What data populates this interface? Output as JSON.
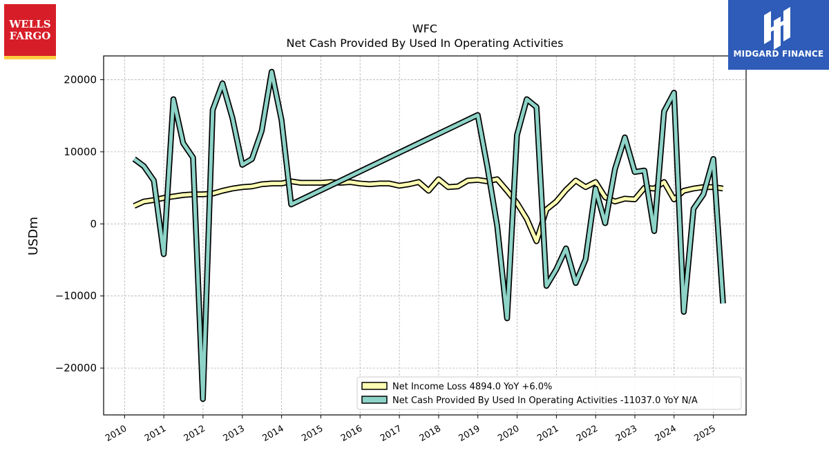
{
  "logos": {
    "left_brand": "WELLS FARGO",
    "left_line1": "WELLS",
    "left_line2": "FARGO",
    "right_brand": "MIDGARD FINANCE"
  },
  "colors": {
    "net_income": "#ffffb3",
    "net_cash": "#8dd3c7",
    "outline": "#000000",
    "wf_red": "#d71e28",
    "wf_gold": "#ffcd41",
    "midgard_blue": "#2e5cb8"
  },
  "chart_data": {
    "type": "line",
    "title": "WFC",
    "subtitle": "Net Cash Provided By Used In Operating Activities",
    "xlabel": "",
    "ylabel": "USDm",
    "xlim": [
      "2009-06-20",
      "2025-11-01"
    ],
    "ylim": [
      -26500,
      23300
    ],
    "x_ticks": [
      "2010",
      "2011",
      "2012",
      "2013",
      "2014",
      "2015",
      "2016",
      "2017",
      "2018",
      "2019",
      "2020",
      "2021",
      "2022",
      "2023",
      "2024",
      "2025"
    ],
    "y_ticks": [
      -20000,
      -10000,
      0,
      10000,
      20000
    ],
    "y_tick_labels": [
      "−20000",
      "−10000",
      "0",
      "10000",
      "20000"
    ],
    "grid": true,
    "legend_position": "lower-right",
    "series": [
      {
        "name": "Net Income Loss",
        "legend_label": "Net Income Loss  4894.0 YoY +6.0%",
        "color": "#ffffb3",
        "points": [
          [
            "2010-03-31",
            2500
          ],
          [
            "2010-06-30",
            3100
          ],
          [
            "2010-09-30",
            3300
          ],
          [
            "2010-12-31",
            3600
          ],
          [
            "2011-03-31",
            3800
          ],
          [
            "2011-06-30",
            4000
          ],
          [
            "2011-09-30",
            4100
          ],
          [
            "2011-12-31",
            4100
          ],
          [
            "2012-03-31",
            4200
          ],
          [
            "2012-06-30",
            4600
          ],
          [
            "2012-09-30",
            4900
          ],
          [
            "2012-12-31",
            5100
          ],
          [
            "2013-03-31",
            5200
          ],
          [
            "2013-06-30",
            5500
          ],
          [
            "2013-09-30",
            5600
          ],
          [
            "2013-12-31",
            5600
          ],
          [
            "2014-03-31",
            5900
          ],
          [
            "2014-06-30",
            5700
          ],
          [
            "2014-09-30",
            5700
          ],
          [
            "2014-12-31",
            5700
          ],
          [
            "2015-03-31",
            5800
          ],
          [
            "2015-06-30",
            5700
          ],
          [
            "2015-09-30",
            5800
          ],
          [
            "2015-12-31",
            5600
          ],
          [
            "2016-03-31",
            5500
          ],
          [
            "2016-06-30",
            5600
          ],
          [
            "2016-09-30",
            5600
          ],
          [
            "2016-12-31",
            5300
          ],
          [
            "2017-03-31",
            5500
          ],
          [
            "2017-06-30",
            5800
          ],
          [
            "2017-09-30",
            4600
          ],
          [
            "2017-12-31",
            6200
          ],
          [
            "2018-03-31",
            5100
          ],
          [
            "2018-06-30",
            5200
          ],
          [
            "2018-09-30",
            6000
          ],
          [
            "2018-12-31",
            6100
          ],
          [
            "2019-03-31",
            5900
          ],
          [
            "2019-06-30",
            6200
          ],
          [
            "2019-09-30",
            4600
          ],
          [
            "2019-12-31",
            2900
          ],
          [
            "2020-03-31",
            700
          ],
          [
            "2020-06-30",
            -2400
          ],
          [
            "2020-09-30",
            2000
          ],
          [
            "2020-12-31",
            3100
          ],
          [
            "2021-03-31",
            4700
          ],
          [
            "2021-06-30",
            6000
          ],
          [
            "2021-09-30",
            5100
          ],
          [
            "2021-12-31",
            5800
          ],
          [
            "2022-03-31",
            3700
          ],
          [
            "2022-06-30",
            3100
          ],
          [
            "2022-09-30",
            3500
          ],
          [
            "2022-12-31",
            3400
          ],
          [
            "2023-03-31",
            5000
          ],
          [
            "2023-06-30",
            4900
          ],
          [
            "2023-09-30",
            5800
          ],
          [
            "2023-12-31",
            3400
          ],
          [
            "2024-03-31",
            4600
          ],
          [
            "2024-06-30",
            4900
          ],
          [
            "2024-09-30",
            5100
          ],
          [
            "2024-12-31",
            5100
          ],
          [
            "2025-03-31",
            4900
          ]
        ]
      },
      {
        "name": "Net Cash Provided By Used In Operating Activities",
        "legend_label": "Net Cash Provided By Used In Operating Activities  -11037.0 YoY N/A",
        "color": "#8dd3c7",
        "points": [
          [
            "2010-03-31",
            9000
          ],
          [
            "2010-06-30",
            8000
          ],
          [
            "2010-09-30",
            6000
          ],
          [
            "2010-12-31",
            -4200
          ],
          [
            "2011-03-31",
            17300
          ],
          [
            "2011-06-30",
            11200
          ],
          [
            "2011-09-30",
            9200
          ],
          [
            "2011-12-31",
            -24300
          ],
          [
            "2012-03-31",
            15800
          ],
          [
            "2012-06-30",
            19500
          ],
          [
            "2012-09-30",
            14700
          ],
          [
            "2012-12-31",
            8200
          ],
          [
            "2013-03-31",
            9000
          ],
          [
            "2013-06-30",
            12900
          ],
          [
            "2013-09-30",
            21100
          ],
          [
            "2013-12-31",
            14400
          ],
          [
            "2014-03-31",
            2700
          ],
          [
            "2018-12-31",
            15100
          ],
          [
            "2019-03-31",
            7900
          ],
          [
            "2019-06-30",
            -300
          ],
          [
            "2019-09-30",
            -13100
          ],
          [
            "2019-12-31",
            12300
          ],
          [
            "2020-03-31",
            17300
          ],
          [
            "2020-06-30",
            16200
          ],
          [
            "2020-09-30",
            -8600
          ],
          [
            "2020-12-31",
            -6300
          ],
          [
            "2021-03-31",
            -3400
          ],
          [
            "2021-06-30",
            -8200
          ],
          [
            "2021-09-30",
            -4900
          ],
          [
            "2021-12-31",
            4900
          ],
          [
            "2022-03-31",
            100
          ],
          [
            "2022-06-30",
            7600
          ],
          [
            "2022-09-30",
            12000
          ],
          [
            "2022-12-31",
            7200
          ],
          [
            "2023-03-31",
            7400
          ],
          [
            "2023-06-30",
            -1000
          ],
          [
            "2023-09-30",
            15600
          ],
          [
            "2023-12-31",
            18200
          ],
          [
            "2024-03-31",
            -12200
          ],
          [
            "2024-06-30",
            2100
          ],
          [
            "2024-09-30",
            4100
          ],
          [
            "2024-12-31",
            9000
          ],
          [
            "2025-03-31",
            -11037
          ]
        ]
      }
    ]
  }
}
